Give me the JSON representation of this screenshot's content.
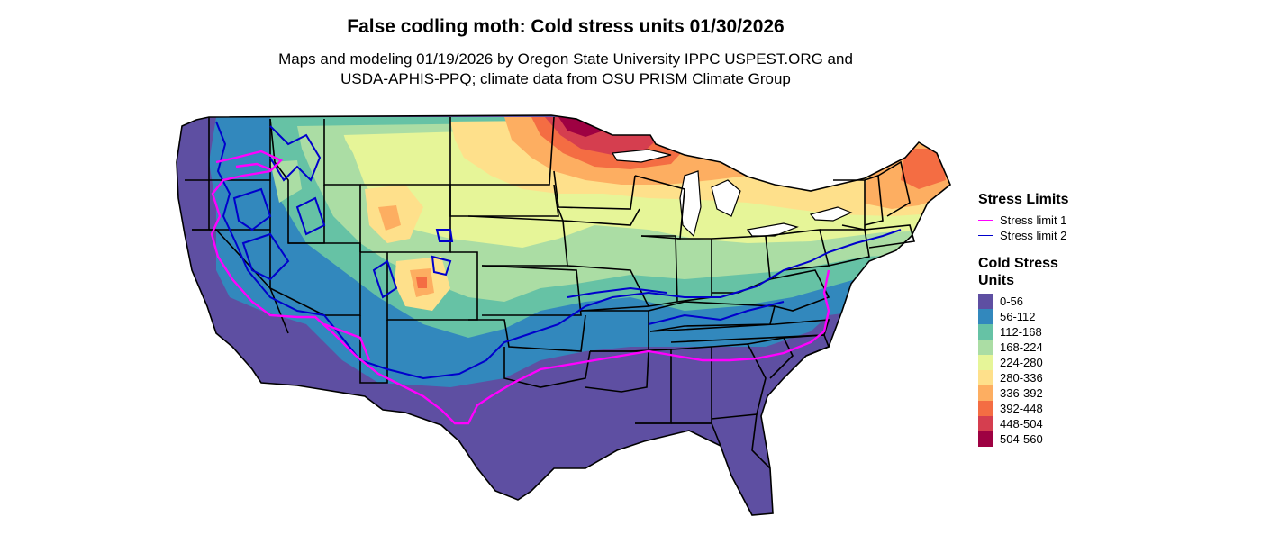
{
  "header": {
    "title": "False codling moth: Cold stress units 01/30/2026",
    "subtitle_line1": "Maps and modeling 01/19/2026 by Oregon State University IPPC USPEST.ORG and",
    "subtitle_line2": "USDA-APHIS-PPQ; climate data from OSU PRISM Climate Group"
  },
  "stress_legend": {
    "title": "Stress Limits",
    "items": [
      {
        "label": "Stress limit 1",
        "color": "#ff00ff"
      },
      {
        "label": "Stress limit 2",
        "color": "#0000cc"
      }
    ]
  },
  "cold_legend": {
    "title_line1": "Cold Stress",
    "title_line2": "Units",
    "items": [
      {
        "label": "0-56",
        "color": "#5e4fa2"
      },
      {
        "label": "56-112",
        "color": "#3288bd"
      },
      {
        "label": "112-168",
        "color": "#66c2a5"
      },
      {
        "label": "168-224",
        "color": "#abdda4"
      },
      {
        "label": "224-280",
        "color": "#e6f598"
      },
      {
        "label": "280-336",
        "color": "#fee08b"
      },
      {
        "label": "336-392",
        "color": "#fdae61"
      },
      {
        "label": "392-448",
        "color": "#f46d43"
      },
      {
        "label": "448-504",
        "color": "#d53e4f"
      },
      {
        "label": "504-560",
        "color": "#9e0142"
      }
    ]
  },
  "colors": {
    "stress_limit_1": "#ff00ff",
    "stress_limit_2": "#0000cc",
    "state_borders": "#000000"
  }
}
